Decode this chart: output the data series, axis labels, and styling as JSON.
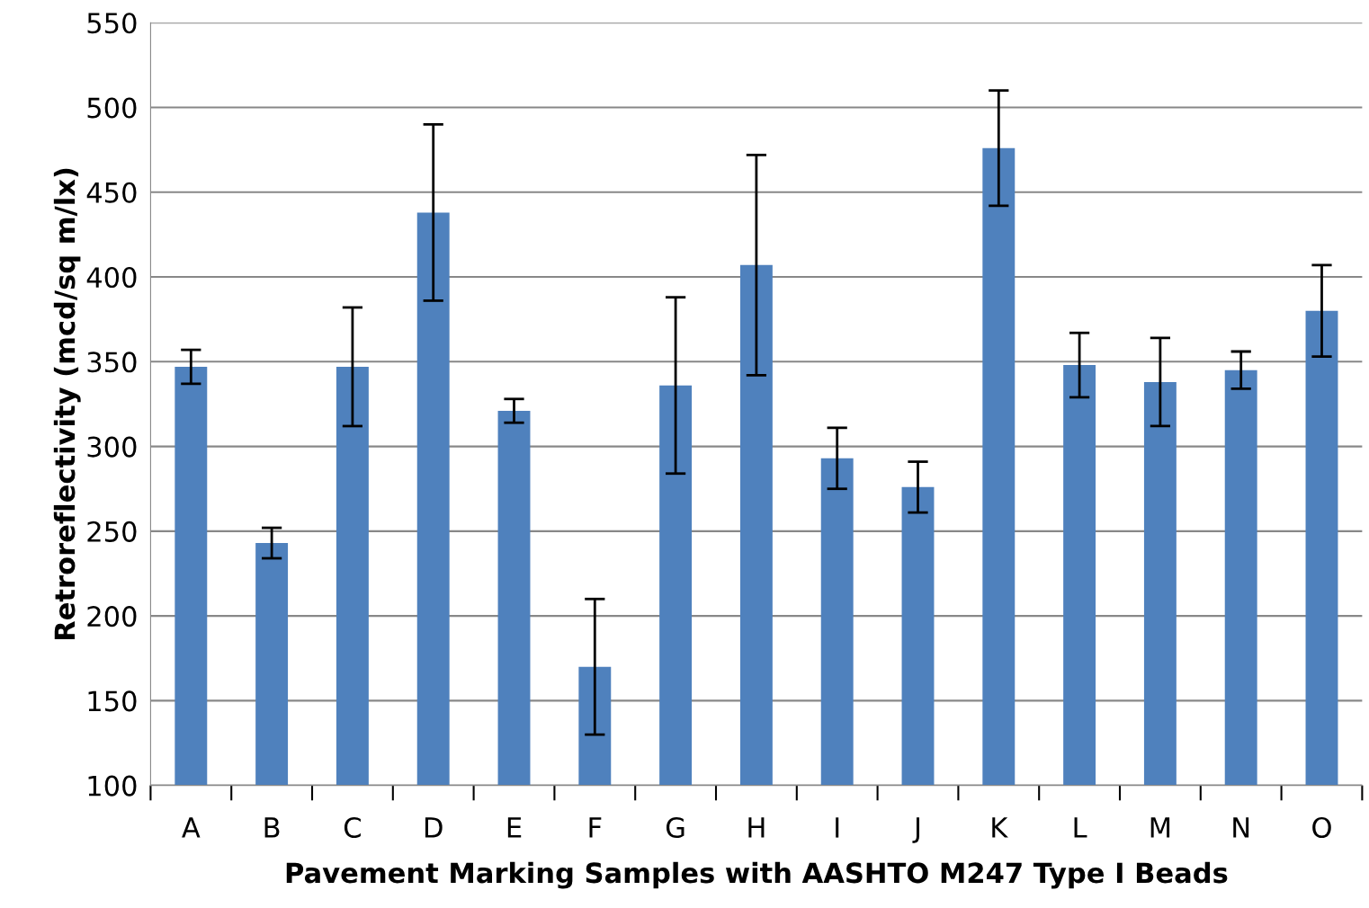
{
  "chart_data": {
    "type": "bar",
    "xlabel": "Pavement Marking Samples with AASHTO M247 Type I Beads",
    "ylabel": "Retroreflectivity (mcd/sq m/lx)",
    "categories": [
      "A",
      "B",
      "C",
      "D",
      "E",
      "F",
      "G",
      "H",
      "I",
      "J",
      "K",
      "L",
      "M",
      "N",
      "O"
    ],
    "values": [
      347,
      243,
      347,
      438,
      321,
      170,
      336,
      407,
      293,
      276,
      476,
      348,
      338,
      345,
      380
    ],
    "errors": [
      10,
      9,
      35,
      52,
      7,
      40,
      52,
      65,
      18,
      15,
      34,
      19,
      26,
      11,
      27
    ],
    "color": "#4f81bd",
    "ylim": [
      100,
      550
    ],
    "yticks": [
      100,
      150,
      200,
      250,
      300,
      350,
      400,
      450,
      500,
      550
    ],
    "grid": "y"
  }
}
